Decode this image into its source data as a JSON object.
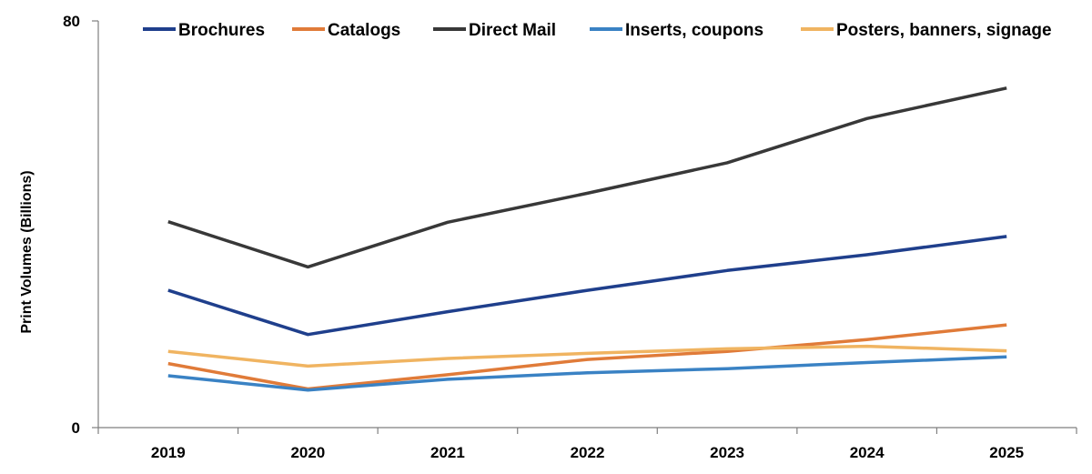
{
  "chart_data": {
    "type": "line",
    "x": [
      "2019",
      "2020",
      "2021",
      "2022",
      "2023",
      "2024",
      "2025"
    ],
    "ylabel": "Print Volumes (Billions)",
    "ylim": [
      0,
      80
    ],
    "yticks": [
      "0",
      "80"
    ],
    "grid": false,
    "legend_position": "top",
    "series": [
      {
        "name": "Brochures",
        "color": "#1f3f8c",
        "values": [
          27,
          18.3,
          22.8,
          27,
          30.9,
          34,
          37.6
        ]
      },
      {
        "name": "Catalogs",
        "color": "#e07b39",
        "values": [
          12.6,
          7.6,
          10.4,
          13.4,
          15,
          17.3,
          20.2
        ]
      },
      {
        "name": "Direct Mail",
        "color": "#383838",
        "values": [
          40.5,
          31.6,
          40.4,
          46.1,
          52.1,
          60.8,
          66.8
        ]
      },
      {
        "name": "Inserts, coupons",
        "color": "#3a82c4",
        "values": [
          10.2,
          7.4,
          9.5,
          10.8,
          11.6,
          12.8,
          13.9
        ]
      },
      {
        "name": "Posters, banners, signage",
        "color": "#f0b461",
        "values": [
          15,
          12.1,
          13.6,
          14.6,
          15.5,
          16,
          15.1
        ]
      }
    ]
  }
}
